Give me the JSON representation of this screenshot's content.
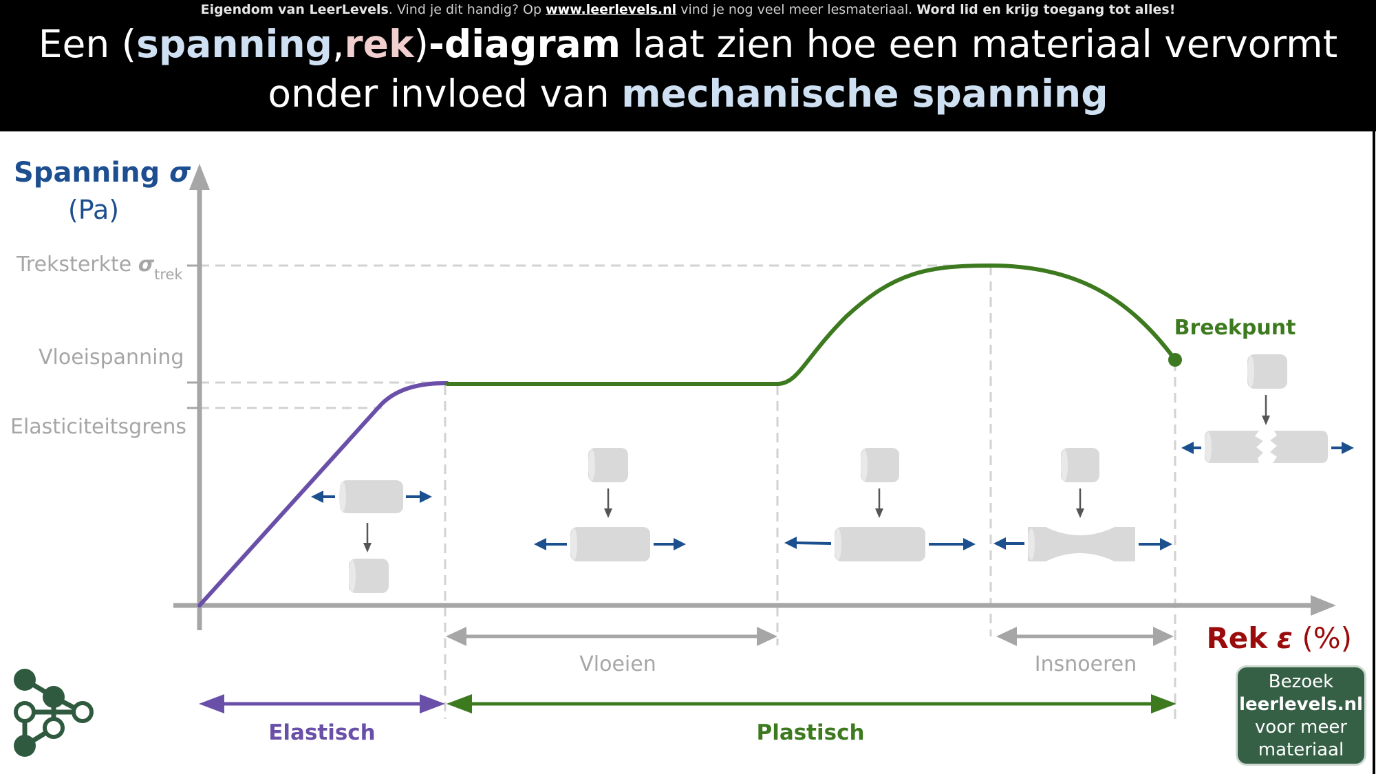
{
  "notice": {
    "owner": "Eigendom van LeerLevels",
    "text_a": ". Vind je dit handig? Op ",
    "link": "www.leerlevels.nl",
    "text_b": " vind je nog veel meer lesmateriaal. ",
    "cta": "Word lid en krijg toegang tot alles!"
  },
  "headline": {
    "t1": "Een (",
    "spanning": "spanning",
    "comma": ",",
    "rek": "rek",
    "t2": ")",
    "diagram": "-diagram",
    "t3": " laat zien hoe een materiaal vervormt",
    "t4": "onder invloed van ",
    "mech": "mechanische spanning"
  },
  "axes": {
    "y_label": "Spanning",
    "y_symbol": "σ",
    "y_unit": "(Pa)",
    "x_label": "Rek",
    "x_symbol": "ε",
    "x_unit": "(%)"
  },
  "levels": {
    "treksterkte": "Treksterkte ",
    "treksterkte_symbol": "σ",
    "treksterkte_sub": "trek",
    "vloeispanning": "Vloeispanning",
    "elasticiteitsgrens": "Elasticiteitsgrens"
  },
  "phases": {
    "breekpunt": "Breekpunt",
    "vloeien": "Vloeien",
    "insnoeren": "Insnoeren",
    "elastisch": "Elastisch",
    "plastisch": "Plastisch"
  },
  "promo": {
    "line1": "Bezoek",
    "line2": "leerlevels.nl",
    "line3": "voor meer",
    "line4": "materiaal"
  },
  "colors": {
    "elastic": "#6a4fa8",
    "plastic": "#3d7a1f",
    "axis_blue": "#1d4e8f",
    "axis_red": "#9b0b0b",
    "grey": "#a6a6a6",
    "arrow_blue": "#1c4f8e",
    "logo": "#2f5a3f"
  }
}
